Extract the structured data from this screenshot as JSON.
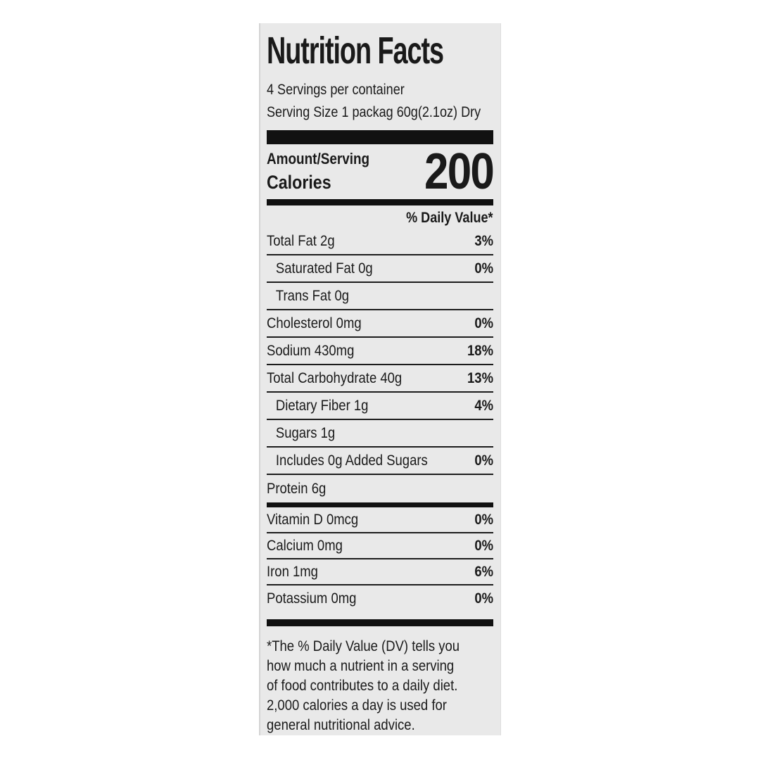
{
  "colors": {
    "page_bg": "#ffffff",
    "card_bg": "#e9e9e9",
    "ink": "#1a1a1a",
    "bar": "#111111"
  },
  "label": {
    "title": "Nutrition Facts",
    "servings_per_container": "4 Servings per container",
    "serving_size": "Serving Size 1 packag 60g(2.1oz) Dry",
    "amount_serving_label": "Amount/Serving",
    "calories_label": "Calories",
    "calories_value": "200",
    "daily_value_header": "% Daily Value*",
    "nutrients": [
      {
        "name": "Total Fat 2g",
        "dv": "3%"
      },
      {
        "name": "Saturated Fat 0g",
        "dv": "0%"
      },
      {
        "name": "Trans Fat 0g",
        "dv": ""
      },
      {
        "name": "Cholesterol 0mg",
        "dv": "0%"
      },
      {
        "name": "Sodium 430mg",
        "dv": "18%"
      },
      {
        "name": "Total Carbohydrate 40g",
        "dv": "13%"
      },
      {
        "name": "Dietary Fiber 1g",
        "dv": "4%"
      },
      {
        "name": "Sugars 1g",
        "dv": ""
      },
      {
        "name": "Includes 0g Added Sugars",
        "dv": "0%"
      },
      {
        "name": "Protein 6g",
        "dv": ""
      }
    ],
    "micronutrients": [
      {
        "name": "Vitamin D 0mcg",
        "dv": "0%"
      },
      {
        "name": "Calcium 0mg",
        "dv": "0%"
      },
      {
        "name": "Iron 1mg",
        "dv": "6%"
      },
      {
        "name": "Potassium 0mg",
        "dv": "0%"
      }
    ],
    "footnote_lines": [
      "*The % Daily Value (DV) tells you",
      "how much a nutrient in a serving",
      "of food contributes to a daily diet.",
      "2,000 calories a day is used for",
      "general nutritional advice."
    ]
  }
}
